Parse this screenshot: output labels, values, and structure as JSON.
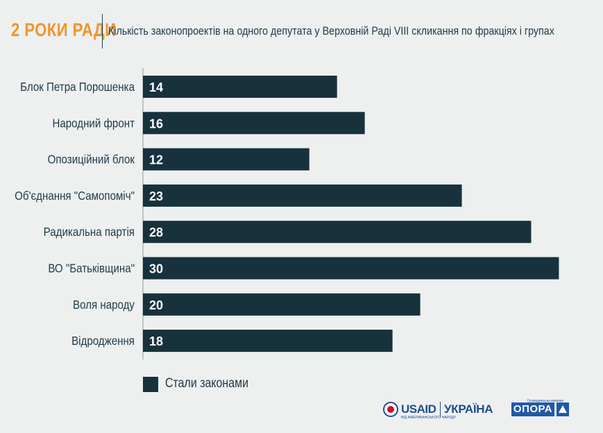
{
  "header": {
    "brand": "2 РОКИ РАДИ",
    "title": "Кількість законопроектів на одного депутата у Верховній Раді VIII скликання по фракціях і групах"
  },
  "colors": {
    "accent": "#f0952a",
    "bar": "#17323d",
    "text": "#1e3a47",
    "background": "#eef0f0"
  },
  "chart_data": {
    "type": "bar",
    "orientation": "horizontal",
    "categories": [
      "Блок Петра Порошенка",
      "Народний фронт",
      "Опозиційний блок",
      "Об'єднання \"Самопоміч\"",
      "Радикальна партія",
      "ВО \"Батьківщина\"",
      "Воля народу",
      "Відродження"
    ],
    "series": [
      {
        "name": "Стали законами",
        "values": [
          14,
          16,
          12,
          23,
          28,
          30,
          20,
          18
        ]
      }
    ],
    "xlim": [
      0,
      31
    ],
    "grid": false,
    "legend": "bottom-left",
    "data_labels": true
  },
  "legend": {
    "label": "Стали законами"
  },
  "footer": {
    "usaid": "USAID",
    "usaid_sub": "ВІД АМЕРИКАНСЬКОГО НАРОДУ",
    "ukraine": "УКРАЇНА",
    "opora": "ОПОРА",
    "opora_sub": "Громадянська мережа"
  }
}
